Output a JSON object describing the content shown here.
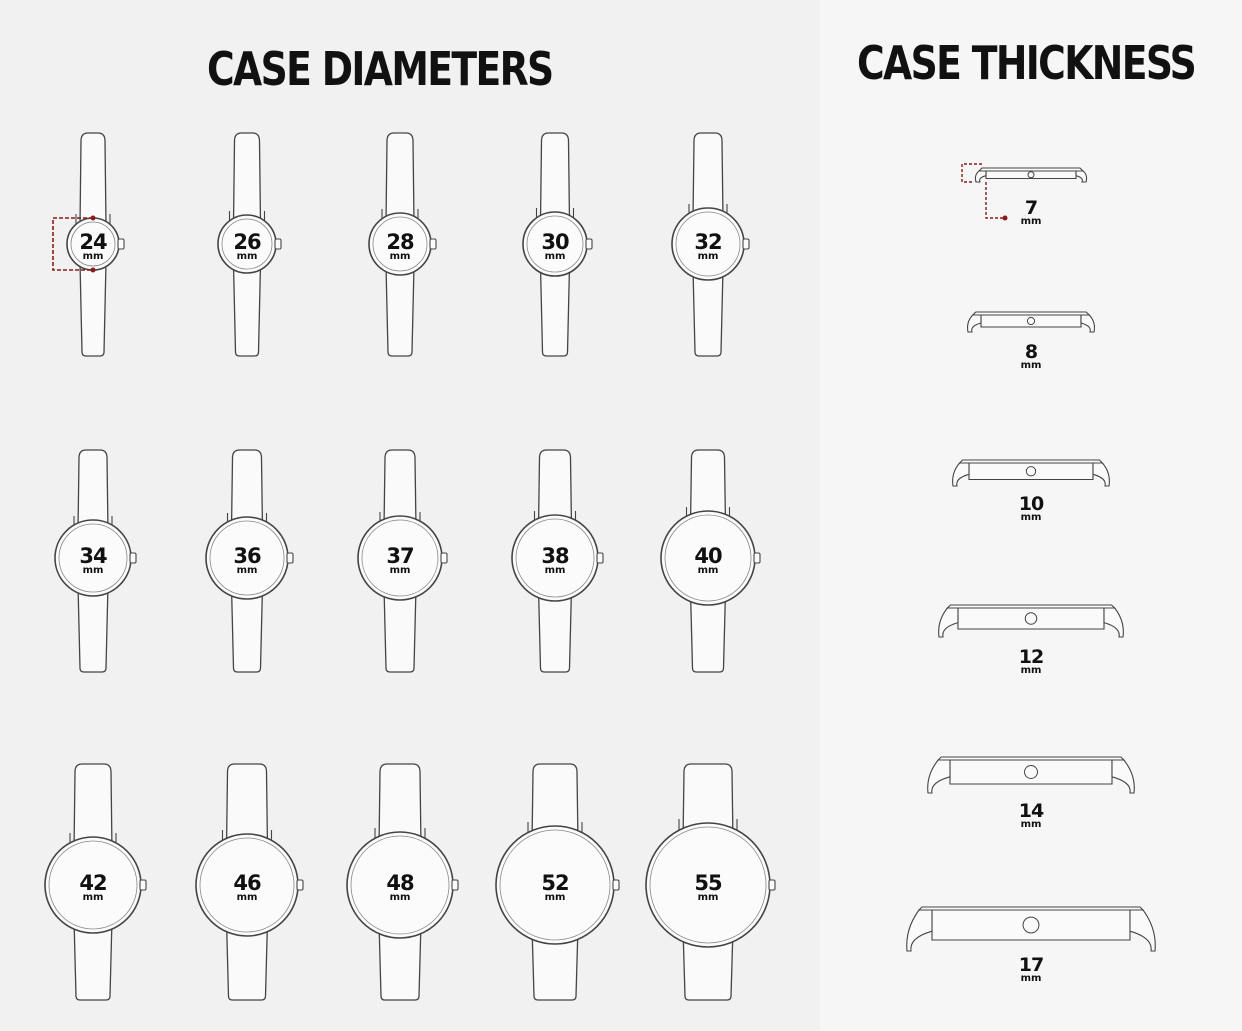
{
  "titles": {
    "diameters": "CASE DIAMETERS",
    "thickness": "CASE THICKNESS"
  },
  "unit": "mm",
  "diameters": [
    "24",
    "26",
    "28",
    "30",
    "32",
    "34",
    "36",
    "37",
    "38",
    "40",
    "42",
    "46",
    "48",
    "52",
    "55"
  ],
  "thickness": [
    "7",
    "8",
    "10",
    "12",
    "14",
    "17"
  ],
  "colors": {
    "outline": "#444444",
    "highlight": "#8b1a1a",
    "text": "#111111"
  }
}
